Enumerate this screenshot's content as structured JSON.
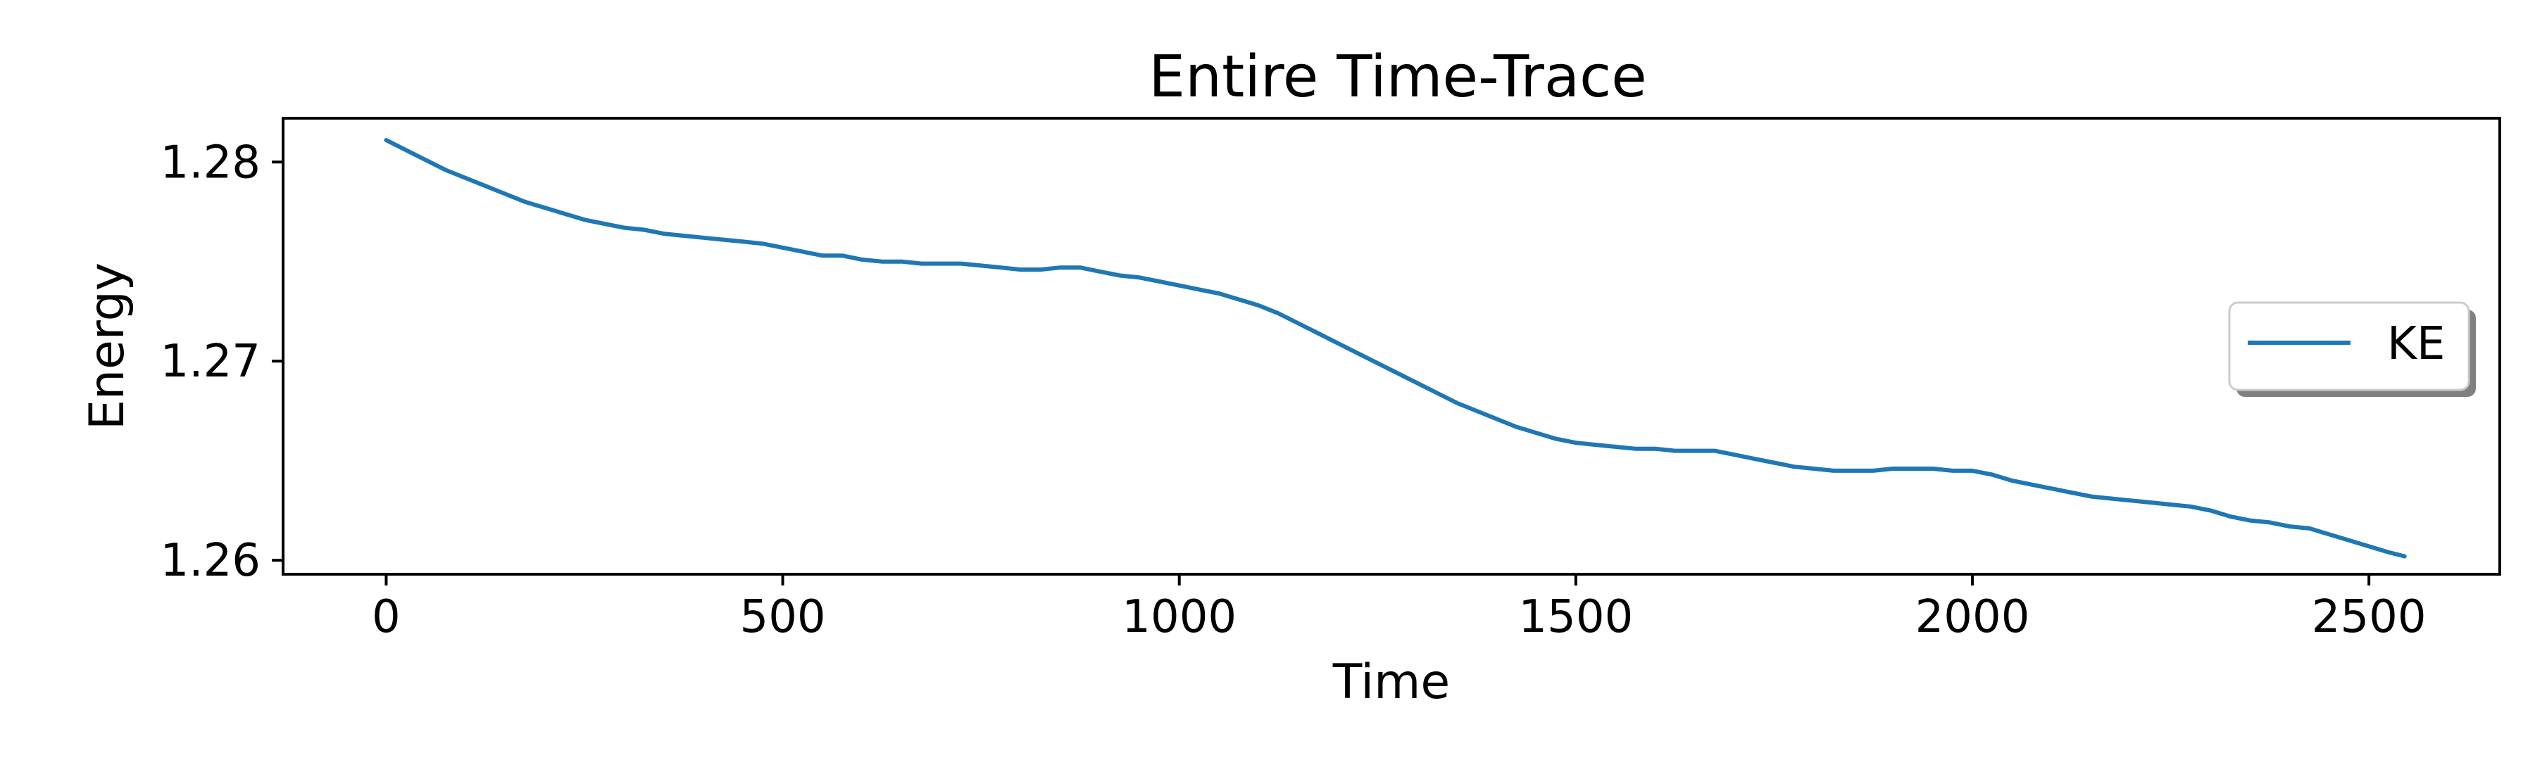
{
  "chart_data": {
    "type": "line",
    "title": "Entire Time-Trace",
    "xlabel": "Time",
    "ylabel": "Energy",
    "xlim": [
      -130,
      2665
    ],
    "ylim": [
      1.2593,
      1.2822
    ],
    "xticks": [
      0,
      500,
      1000,
      1500,
      2000,
      2500
    ],
    "xtick_labels": [
      "0",
      "500",
      "1000",
      "1500",
      "2000",
      "2500"
    ],
    "yticks": [
      1.26,
      1.27,
      1.28
    ],
    "ytick_labels": [
      "1.26",
      "1.27",
      "1.28"
    ],
    "grid": false,
    "legend": {
      "placement": "center-right"
    },
    "colors": {
      "KE": "#1f77b4"
    },
    "series": [
      {
        "name": "KE",
        "color": "#1f77b4",
        "x": [
          0,
          25,
          50,
          75,
          100,
          125,
          150,
          175,
          200,
          225,
          250,
          275,
          300,
          325,
          350,
          375,
          400,
          425,
          450,
          475,
          500,
          525,
          550,
          575,
          600,
          625,
          650,
          675,
          700,
          725,
          750,
          775,
          800,
          825,
          850,
          875,
          900,
          925,
          950,
          975,
          1000,
          1025,
          1050,
          1075,
          1100,
          1125,
          1150,
          1175,
          1200,
          1225,
          1250,
          1275,
          1300,
          1325,
          1350,
          1375,
          1400,
          1425,
          1450,
          1475,
          1500,
          1525,
          1550,
          1575,
          1600,
          1625,
          1650,
          1675,
          1700,
          1725,
          1750,
          1775,
          1800,
          1825,
          1850,
          1875,
          1900,
          1925,
          1950,
          1975,
          2000,
          2025,
          2050,
          2075,
          2100,
          2125,
          2150,
          2175,
          2200,
          2225,
          2250,
          2275,
          2300,
          2325,
          2350,
          2375,
          2400,
          2425,
          2450,
          2475,
          2500,
          2525,
          2545
        ],
        "y": [
          1.2811,
          1.2806,
          1.2801,
          1.2796,
          1.2792,
          1.2788,
          1.2784,
          1.278,
          1.2777,
          1.2774,
          1.2771,
          1.2769,
          1.2767,
          1.2766,
          1.2764,
          1.2763,
          1.2762,
          1.2761,
          1.276,
          1.2759,
          1.2757,
          1.2755,
          1.2753,
          1.2753,
          1.2751,
          1.275,
          1.275,
          1.2749,
          1.2749,
          1.2749,
          1.2748,
          1.2747,
          1.2746,
          1.2746,
          1.2747,
          1.2747,
          1.2745,
          1.2743,
          1.2742,
          1.274,
          1.2738,
          1.2736,
          1.2734,
          1.2731,
          1.2728,
          1.2724,
          1.2719,
          1.2714,
          1.2709,
          1.2704,
          1.2699,
          1.2694,
          1.2689,
          1.2684,
          1.2679,
          1.2675,
          1.2671,
          1.2667,
          1.2664,
          1.2661,
          1.2659,
          1.2658,
          1.2657,
          1.2656,
          1.2656,
          1.2655,
          1.2655,
          1.2655,
          1.2653,
          1.2651,
          1.2649,
          1.2647,
          1.2646,
          1.2645,
          1.2645,
          1.2645,
          1.2646,
          1.2646,
          1.2646,
          1.2645,
          1.2645,
          1.2643,
          1.264,
          1.2638,
          1.2636,
          1.2634,
          1.2632,
          1.2631,
          1.263,
          1.2629,
          1.2628,
          1.2627,
          1.2625,
          1.2622,
          1.262,
          1.2619,
          1.2617,
          1.2616,
          1.2613,
          1.261,
          1.2607,
          1.2604,
          1.2602
        ]
      }
    ]
  }
}
